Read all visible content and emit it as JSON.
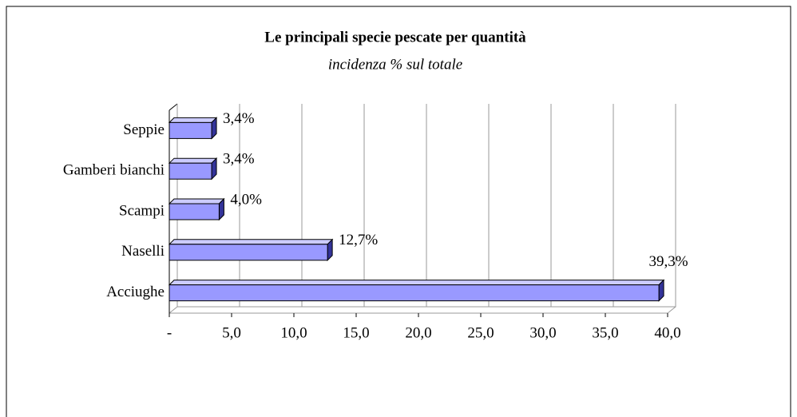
{
  "chart_data": {
    "type": "bar",
    "orientation": "horizontal",
    "title": "Le principali specie pescate per quantità",
    "subtitle": "incidenza % sul totale",
    "categories": [
      "Seppie",
      "Gamberi bianchi",
      "Scampi",
      "Naselli",
      "Acciughe"
    ],
    "values": [
      3.4,
      3.4,
      4.0,
      12.7,
      39.3
    ],
    "value_labels": [
      "3,4%",
      "3,4%",
      "4,0%",
      "12,7%",
      "39,3%"
    ],
    "color": "#9999ff",
    "xlim": [
      0,
      40
    ],
    "xticks": [
      {
        "value": 0,
        "label": "-"
      },
      {
        "value": 5,
        "label": "5,0"
      },
      {
        "value": 10,
        "label": "10,0"
      },
      {
        "value": 15,
        "label": "15,0"
      },
      {
        "value": 20,
        "label": "20,0"
      },
      {
        "value": 25,
        "label": "25,0"
      },
      {
        "value": 30,
        "label": "30,0"
      },
      {
        "value": 35,
        "label": "35,0"
      },
      {
        "value": 40,
        "label": "40,0"
      }
    ],
    "grid": true
  }
}
